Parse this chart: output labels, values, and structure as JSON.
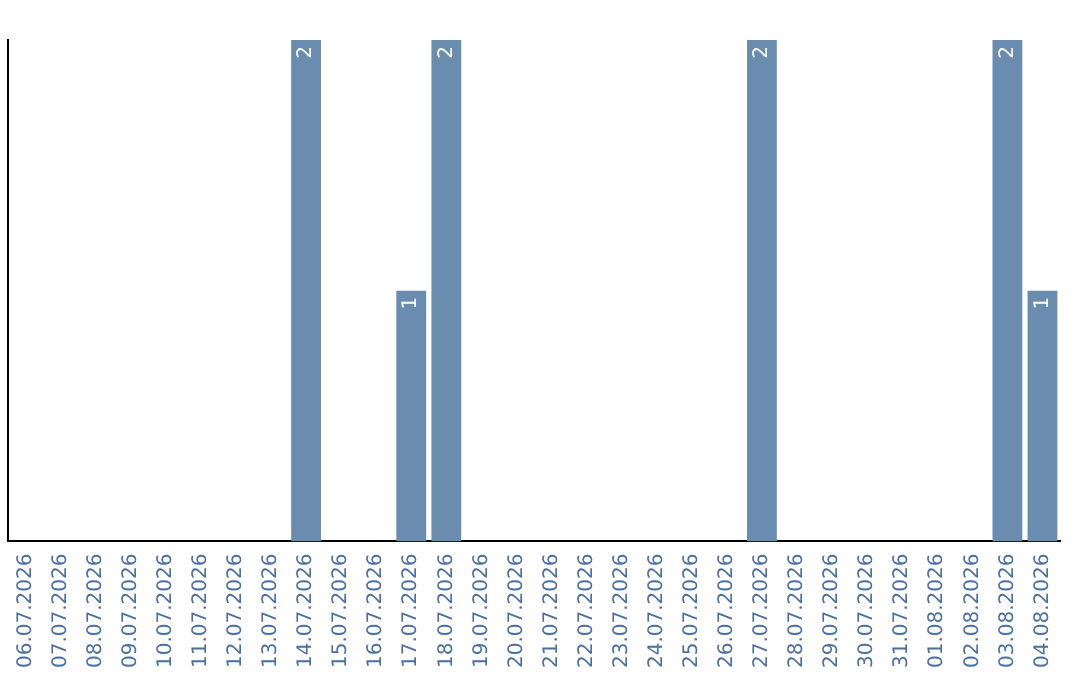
{
  "chart_data": {
    "type": "bar",
    "categories": [
      "06.07.2026",
      "07.07.2026",
      "08.07.2026",
      "09.07.2026",
      "10.07.2026",
      "11.07.2026",
      "12.07.2026",
      "13.07.2026",
      "14.07.2026",
      "15.07.2026",
      "16.07.2026",
      "17.07.2026",
      "18.07.2026",
      "19.07.2026",
      "20.07.2026",
      "21.07.2026",
      "22.07.2026",
      "23.07.2026",
      "24.07.2026",
      "25.07.2026",
      "26.07.2026",
      "27.07.2026",
      "28.07.2026",
      "29.07.2026",
      "30.07.2026",
      "31.07.2026",
      "01.08.2026",
      "02.08.2026",
      "03.08.2026",
      "04.08.2026"
    ],
    "values": [
      0,
      0,
      0,
      0,
      0,
      0,
      0,
      0,
      2,
      0,
      0,
      1,
      2,
      0,
      0,
      0,
      0,
      0,
      0,
      0,
      0,
      2,
      0,
      0,
      0,
      0,
      0,
      0,
      2,
      1
    ],
    "value_labels": [
      null,
      null,
      null,
      null,
      null,
      null,
      null,
      null,
      "2",
      null,
      null,
      "1",
      "2",
      null,
      null,
      null,
      null,
      null,
      null,
      null,
      null,
      "2",
      null,
      null,
      null,
      null,
      null,
      null,
      "2",
      "1"
    ],
    "color": "#6a8caf",
    "grid": false,
    "legend": false
  }
}
